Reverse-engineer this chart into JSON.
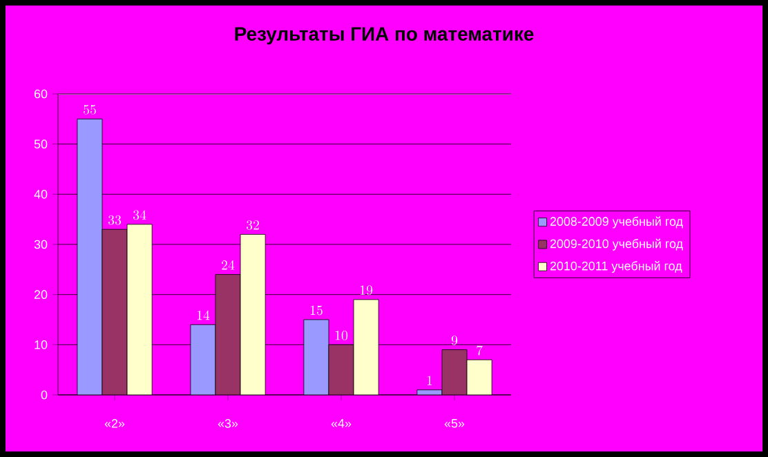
{
  "chart_data": {
    "type": "bar",
    "title": "Результаты ГИА по математике",
    "categories": [
      "«2»",
      "«3»",
      "«4»",
      "«5»"
    ],
    "series": [
      {
        "name": "2008-2009 учебный год",
        "color": "#9999ff",
        "values": [
          55,
          14,
          15,
          1
        ]
      },
      {
        "name": "2009-2010 учебный год",
        "color": "#993366",
        "values": [
          33,
          24,
          10,
          9
        ]
      },
      {
        "name": "2010-2011 учебный год",
        "color": "#ffffcc",
        "values": [
          34,
          32,
          19,
          7
        ]
      }
    ],
    "ylim": [
      0,
      60
    ],
    "yticks": [
      0,
      10,
      20,
      30,
      40,
      50,
      60
    ],
    "grid": "y",
    "legend": "right",
    "data_labels": true
  }
}
